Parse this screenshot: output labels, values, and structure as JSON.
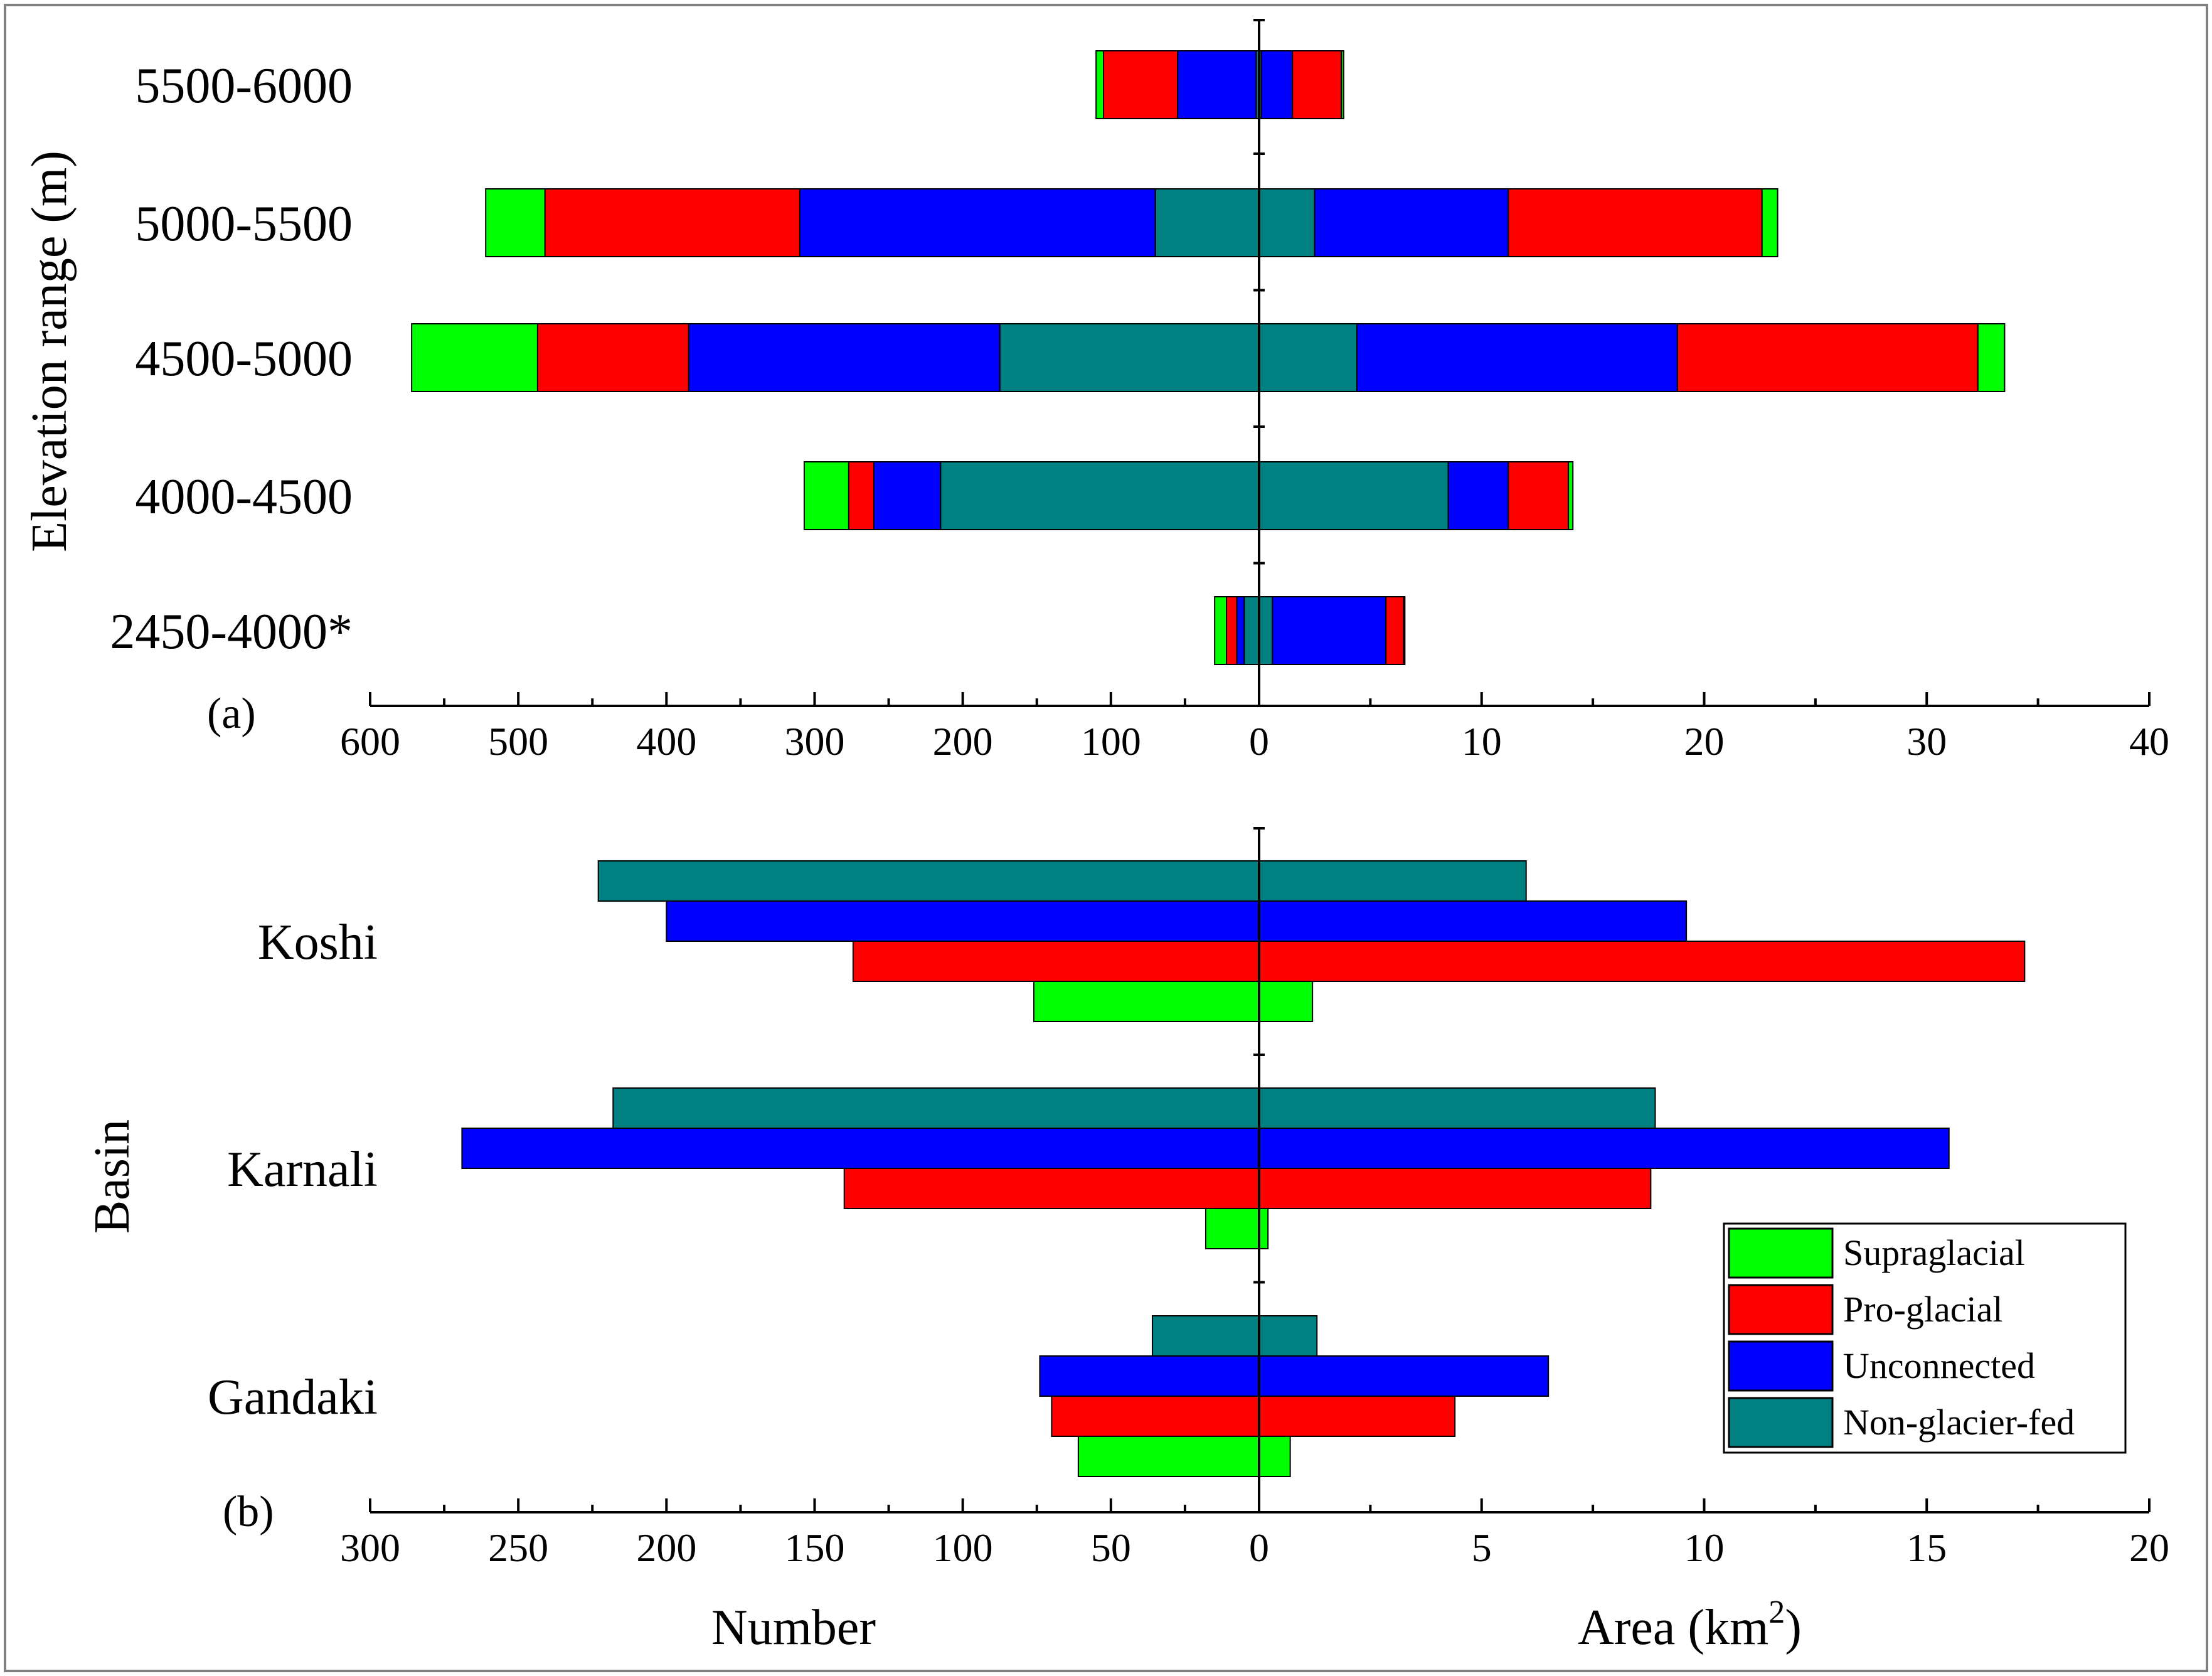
{
  "figure": {
    "colors": {
      "Supraglacial": "#00ff00",
      "Pro-glacial": "#ff0000",
      "Unconnected": "#0000ff",
      "Non-glacier-fed": "#008080"
    },
    "legend": [
      "Supraglacial",
      "Pro-glacial",
      "Unconnected",
      "Non-glacier-fed"
    ]
  },
  "chart_data": [
    {
      "type": "bar",
      "orientation": "horizontal",
      "stacked": true,
      "panel_tag": "(a)",
      "ylabel": "Elevation range (m)",
      "categories": [
        "5500-6000",
        "5000-5500",
        "4500-5000",
        "4000-4500",
        "2450-4000*"
      ],
      "left_axis": {
        "name": "Number",
        "range": [
          600,
          0
        ],
        "ticks": [
          600,
          500,
          400,
          300,
          200,
          100,
          0
        ]
      },
      "right_axis": {
        "name": "Area (km2)",
        "range": [
          0,
          40
        ],
        "ticks": [
          10,
          20,
          30,
          40
        ]
      },
      "number_series": [
        {
          "name": "Non-glacier-fed",
          "values": [
            2,
            70,
            175,
            215,
            10
          ]
        },
        {
          "name": "Unconnected",
          "values": [
            53,
            240,
            210,
            45,
            5
          ]
        },
        {
          "name": "Pro-glacial",
          "values": [
            50,
            172,
            102,
            17,
            7
          ]
        },
        {
          "name": "Supraglacial",
          "values": [
            5,
            40,
            85,
            30,
            8
          ]
        }
      ],
      "area_series": [
        {
          "name": "Non-glacier-fed",
          "values": [
            0.1,
            2.5,
            4.4,
            8.5,
            0.6
          ]
        },
        {
          "name": "Unconnected",
          "values": [
            1.4,
            8.7,
            14.4,
            2.7,
            5.1
          ]
        },
        {
          "name": "Pro-glacial",
          "values": [
            2.2,
            11.4,
            13.5,
            2.7,
            0.8
          ]
        },
        {
          "name": "Supraglacial",
          "values": [
            0.1,
            0.7,
            1.2,
            0.2,
            0.05
          ]
        }
      ]
    },
    {
      "type": "bar",
      "orientation": "horizontal",
      "stacked": false,
      "panel_tag": "(b)",
      "ylabel": "Basin",
      "categories": [
        "Koshi",
        "Karnali",
        "Gandaki"
      ],
      "left_axis": {
        "name": "Number",
        "range": [
          300,
          0
        ],
        "ticks": [
          300,
          250,
          200,
          150,
          100,
          50,
          0
        ]
      },
      "right_axis": {
        "name": "Area (km2)",
        "range": [
          0,
          20
        ],
        "ticks": [
          5,
          10,
          15,
          20
        ]
      },
      "series_order": [
        "Non-glacier-fed",
        "Unconnected",
        "Pro-glacial",
        "Supraglacial"
      ],
      "number_series": [
        {
          "name": "Non-glacier-fed",
          "values": [
            223,
            218,
            36
          ]
        },
        {
          "name": "Unconnected",
          "values": [
            200,
            269,
            74
          ]
        },
        {
          "name": "Pro-glacial",
          "values": [
            137,
            140,
            70
          ]
        },
        {
          "name": "Supraglacial",
          "values": [
            76,
            18,
            61
          ]
        }
      ],
      "area_series": [
        {
          "name": "Non-glacier-fed",
          "values": [
            6.0,
            8.9,
            1.3
          ]
        },
        {
          "name": "Unconnected",
          "values": [
            9.6,
            15.5,
            6.5
          ]
        },
        {
          "name": "Pro-glacial",
          "values": [
            17.2,
            8.8,
            4.4
          ]
        },
        {
          "name": "Supraglacial",
          "values": [
            1.2,
            0.2,
            0.7
          ]
        }
      ]
    }
  ],
  "axis_titles": {
    "number": "Number",
    "area_main": "Area (km",
    "area_sup": "2",
    "area_close": ")"
  }
}
